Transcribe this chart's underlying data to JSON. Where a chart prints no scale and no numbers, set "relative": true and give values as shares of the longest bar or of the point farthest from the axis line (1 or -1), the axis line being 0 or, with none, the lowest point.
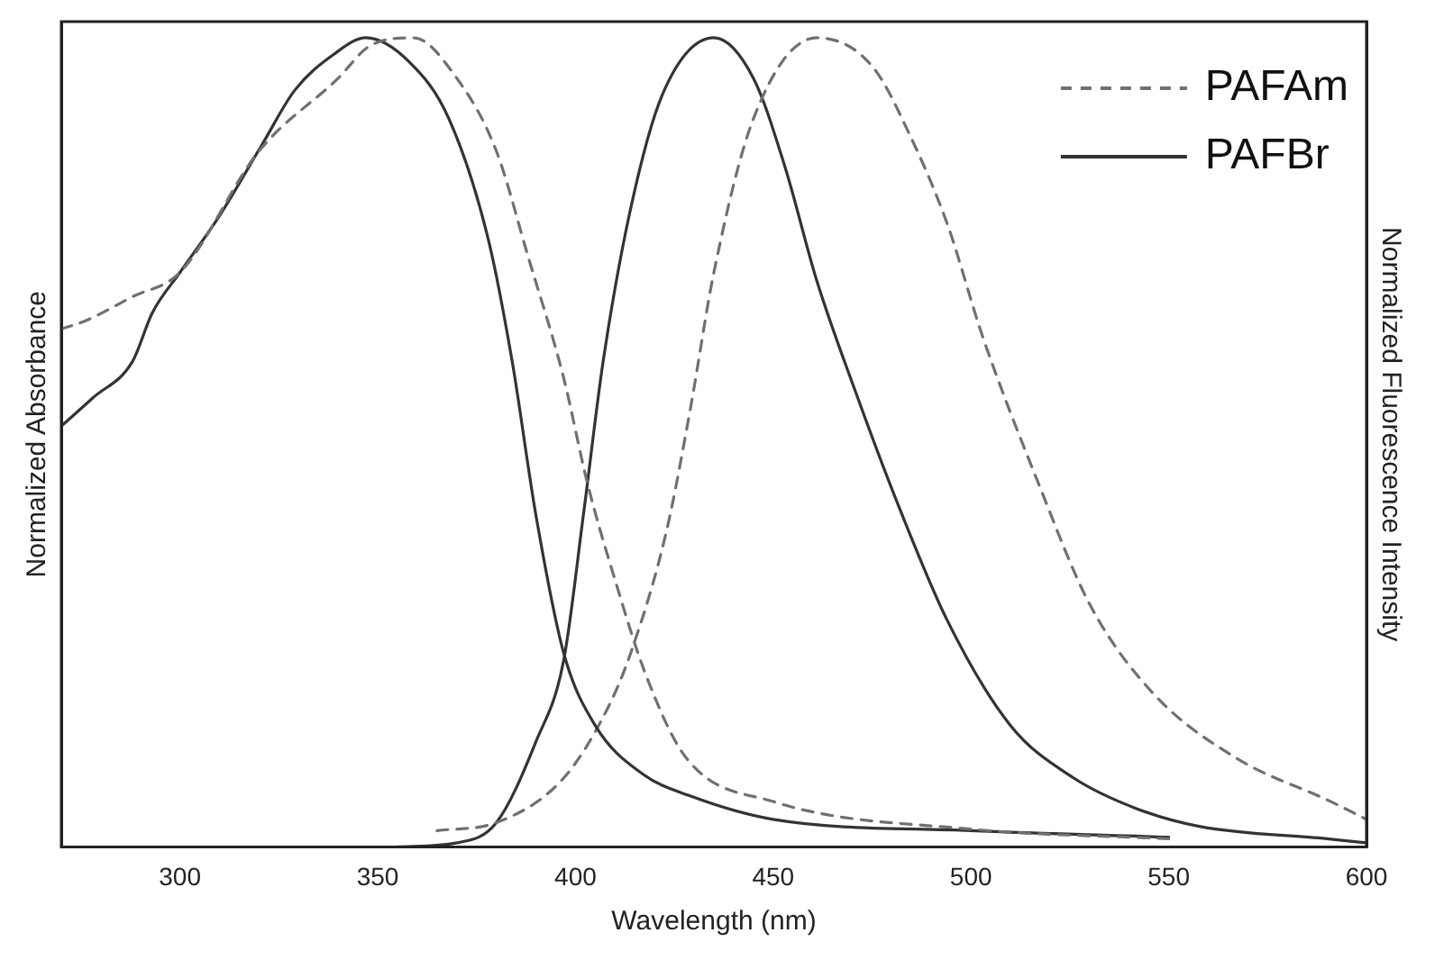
{
  "chart_data": {
    "type": "line",
    "relative": true,
    "xlabel": "Wavelength (nm)",
    "ylabel": "Normalized Absorbance",
    "y2label": "Normalized Fluorescence Intensity",
    "xlim": [
      270,
      600
    ],
    "xticks": [
      300,
      350,
      400,
      450,
      500,
      550,
      600
    ],
    "tick_labels": "x",
    "grid": false,
    "legend": "top right",
    "marker": "none",
    "series": [
      {
        "name": "PAFAm",
        "color": "#707070",
        "line_style": "dashed",
        "x": [
          270,
          276,
          288,
          300,
          320,
          340,
          348,
          359,
          370,
          380,
          388,
          397,
          403,
          410,
          418,
          428,
          450,
          500,
          550
        ],
        "values": [
          0.64,
          0.65,
          0.68,
          0.71,
          0.86,
          0.95,
          0.99,
          1.0,
          0.95,
          0.86,
          0.73,
          0.58,
          0.45,
          0.33,
          0.21,
          0.11,
          0.056,
          0.022,
          0.01
        ]
      },
      {
        "name": "PAFBr",
        "color": "#333333",
        "line_style": "solid",
        "x": [
          270,
          278,
          288,
          293,
          300,
          310,
          321,
          329,
          339,
          347,
          358,
          368,
          378,
          384,
          390,
          397,
          405,
          417,
          429,
          450,
          500,
          550
        ],
        "values": [
          0.52,
          0.555,
          0.6,
          0.66,
          0.71,
          0.78,
          0.87,
          0.935,
          0.98,
          1.0,
          0.97,
          0.9,
          0.75,
          0.6,
          0.41,
          0.24,
          0.15,
          0.09,
          0.063,
          0.034,
          0.02,
          0.012
        ]
      },
      {
        "color": "#707070",
        "line_style": "dashed",
        "axis": "y2",
        "x": [
          365,
          380,
          397,
          408,
          414,
          423,
          429,
          435,
          445,
          461,
          475,
          485,
          494,
          503,
          517,
          530,
          546,
          567,
          591,
          600
        ],
        "values": [
          0.02,
          0.03,
          0.085,
          0.17,
          0.24,
          0.39,
          0.54,
          0.71,
          0.9,
          1.0,
          0.965,
          0.875,
          0.77,
          0.63,
          0.45,
          0.3,
          0.19,
          0.11,
          0.056,
          0.034
        ]
      },
      {
        "color": "#333333",
        "line_style": "solid",
        "axis": "y2",
        "x": [
          355,
          370,
          380,
          390,
          397,
          402,
          407,
          414,
          422,
          435,
          445,
          453,
          461,
          471,
          481,
          494,
          510,
          526,
          542,
          558,
          590,
          600
        ],
        "values": [
          0.0,
          0.005,
          0.03,
          0.13,
          0.23,
          0.41,
          0.6,
          0.79,
          0.93,
          1.0,
          0.95,
          0.84,
          0.7,
          0.56,
          0.43,
          0.28,
          0.15,
          0.085,
          0.047,
          0.025,
          0.01,
          0.005
        ]
      }
    ]
  }
}
